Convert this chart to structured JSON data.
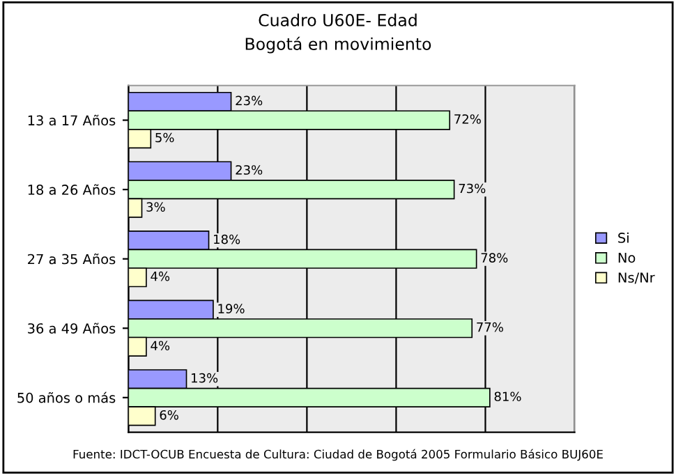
{
  "chart_data": {
    "type": "bar",
    "orientation": "horizontal",
    "title": "Cuadro U60E- Edad",
    "subtitle": "Bogotá en movimiento",
    "categories": [
      "13 a 17 Años",
      "18 a 26 Años",
      "27 a 35 Años",
      "36 a 49 Años",
      "50 años o más"
    ],
    "series": [
      {
        "name": "Si",
        "color": "#9999ff",
        "values": [
          23,
          23,
          18,
          19,
          13
        ],
        "value_labels": [
          "23%",
          "23%",
          "18%",
          "19%",
          "13%"
        ]
      },
      {
        "name": "No",
        "color": "#ccffcc",
        "values": [
          72,
          73,
          78,
          77,
          81
        ],
        "value_labels": [
          "72%",
          "73%",
          "78%",
          "77%",
          "81%"
        ]
      },
      {
        "name": "Ns/Nr",
        "color": "#ffffcc",
        "values": [
          5,
          3,
          4,
          4,
          6
        ],
        "value_labels": [
          "5%",
          "3%",
          "4%",
          "4%",
          "6%"
        ]
      }
    ],
    "xlim": [
      0,
      100
    ],
    "xticks": [
      {
        "value": 0,
        "label": null
      },
      {
        "value": 20,
        "label": null
      },
      {
        "value": 40,
        "label": null
      },
      {
        "value": 60,
        "label": null
      },
      {
        "value": 80,
        "label": null
      },
      {
        "value": 100,
        "label": null
      }
    ],
    "grid": "x",
    "legend": "right",
    "annotations": [
      "Fuente: IDCT-OCUB Encuesta de Cultura: Ciudad de Bogotá 2005 Formulario Básico BUJ60E"
    ]
  }
}
